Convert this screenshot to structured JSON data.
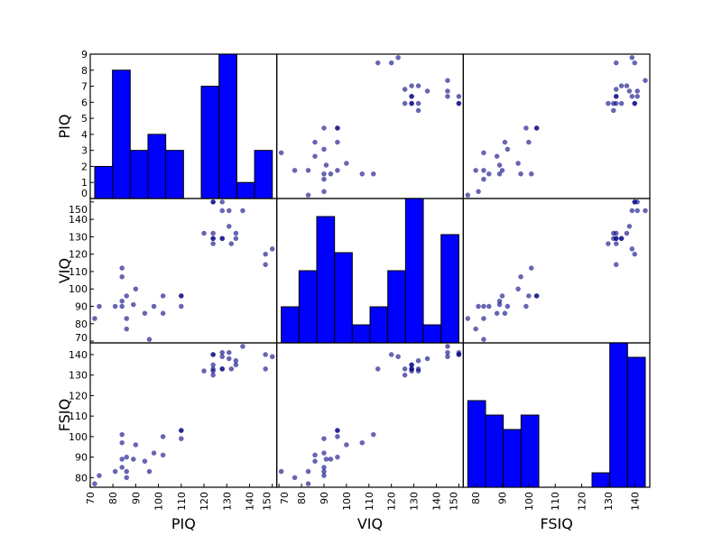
{
  "chart_data": {
    "type": "scatter-matrix",
    "variables": [
      "PIQ",
      "VIQ",
      "FSIQ"
    ],
    "diagonal": "hist",
    "hist_bins": 10,
    "colors": {
      "points": "#000080",
      "hist": "#0000ff"
    },
    "limits": {
      "PIQ": [
        70.05,
        151.95
      ],
      "VIQ": [
        69.0,
        151.98
      ],
      "FSIQ": [
        75.3,
        145.7
      ]
    },
    "hist_count_ticks": [
      "0",
      "1",
      "2",
      "3",
      "4",
      "5",
      "6",
      "7",
      "8",
      "9"
    ],
    "hist_count_max": 9,
    "ticks": {
      "PIQ": [
        "70",
        "80",
        "90",
        "100",
        "110",
        "120",
        "130",
        "140",
        "150"
      ],
      "VIQ": [
        "70",
        "80",
        "90",
        "100",
        "110",
        "120",
        "130",
        "140",
        "150"
      ],
      "FSIQ": [
        "80",
        "90",
        "100",
        "110",
        "120",
        "130",
        "140"
      ]
    },
    "data": {
      "FSIQ": [
        133,
        140,
        139,
        133,
        137,
        99,
        138,
        92,
        89,
        133,
        132,
        141,
        135,
        140,
        96,
        83,
        132,
        100,
        101,
        80,
        83,
        97,
        135,
        139,
        91,
        141,
        85,
        103,
        77,
        130,
        133,
        144,
        103,
        90,
        83,
        133,
        140,
        88,
        81,
        89
      ],
      "VIQ": [
        132,
        150,
        123,
        129,
        132,
        90,
        136,
        90,
        93,
        114,
        129,
        150,
        129,
        120,
        100,
        71,
        132,
        96,
        112,
        77,
        83,
        107,
        129,
        145,
        86,
        145,
        90,
        96,
        83,
        126,
        126,
        145,
        96,
        96,
        90,
        129,
        150,
        86,
        90,
        91
      ],
      "PIQ": [
        124,
        124,
        150,
        128,
        134,
        110,
        131,
        98,
        84,
        147,
        124,
        128,
        124,
        147,
        90,
        96,
        120,
        102,
        84,
        86,
        86,
        84,
        134,
        128,
        102,
        131,
        84,
        110,
        72,
        124,
        132,
        137,
        110,
        86,
        81,
        128,
        124,
        94,
        74,
        89
      ]
    }
  }
}
